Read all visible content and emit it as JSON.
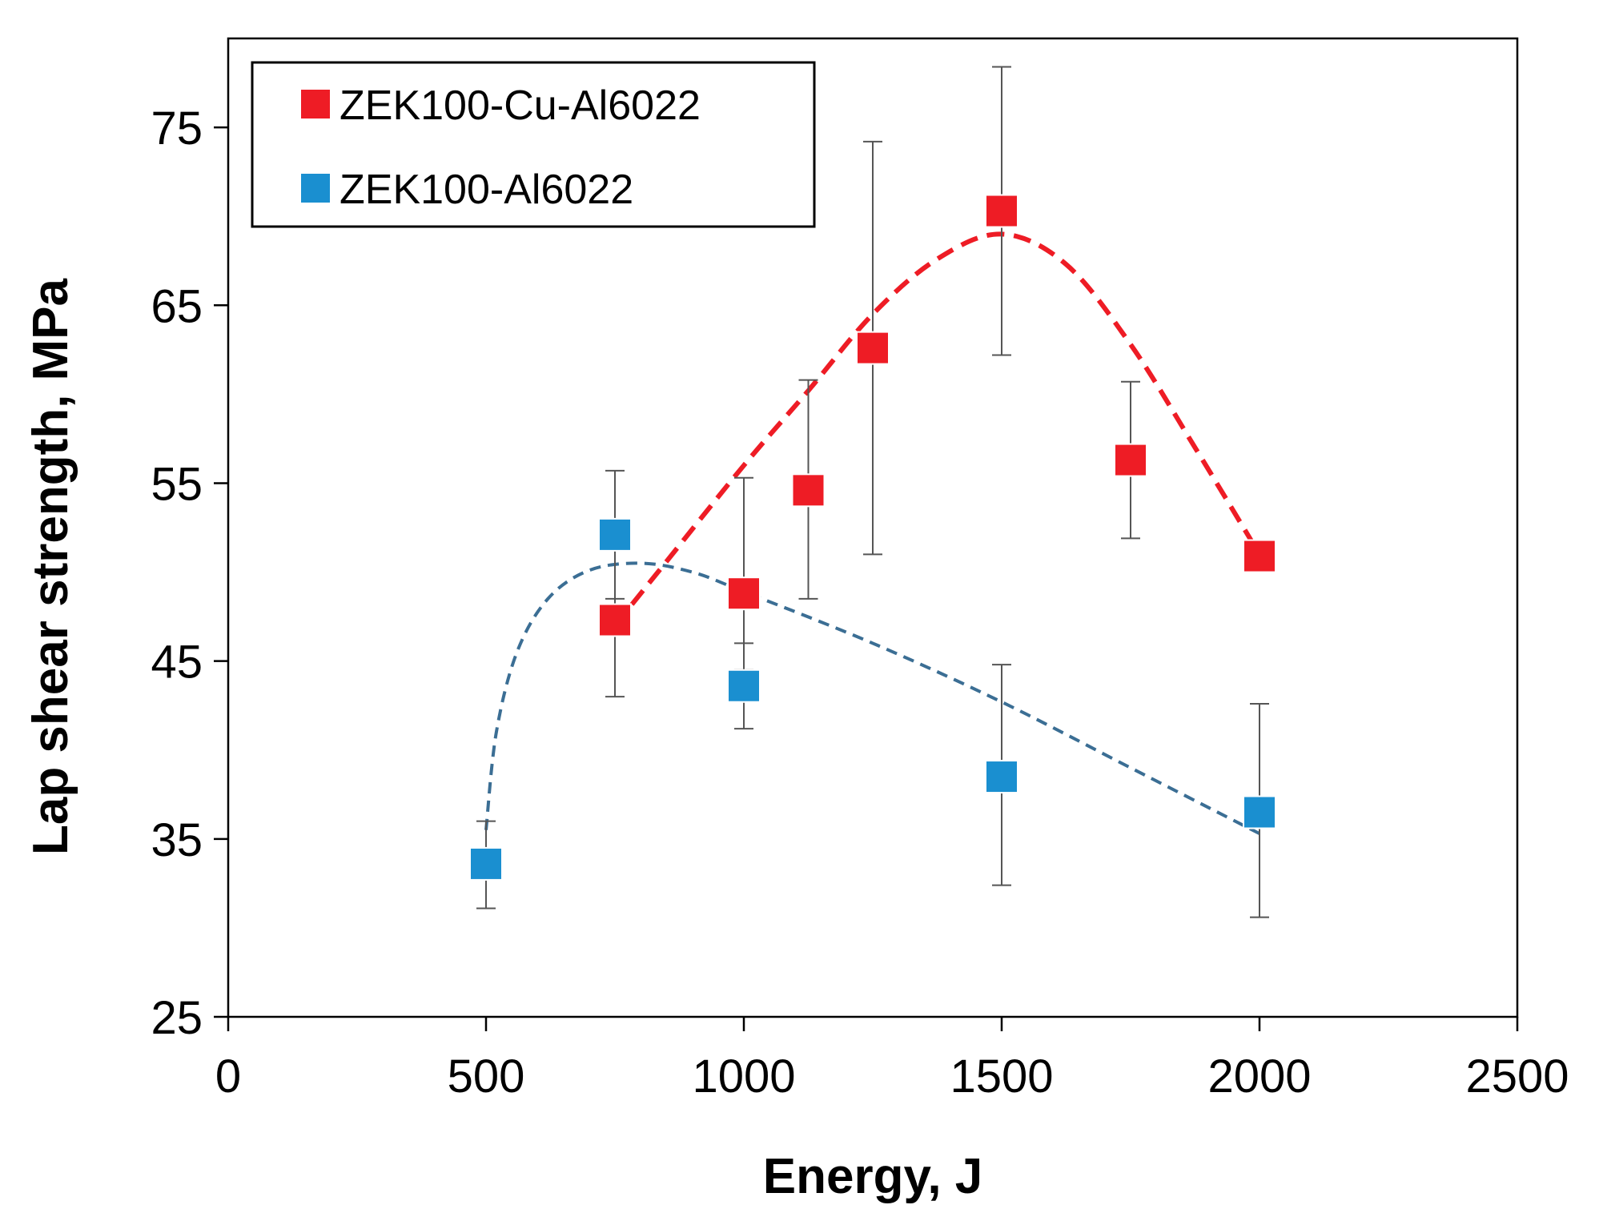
{
  "chart_data": {
    "type": "scatter",
    "title": "",
    "xlabel": "Energy, J",
    "ylabel": "Lap shear strength, MPa",
    "xlim": [
      0,
      2500
    ],
    "ylim": [
      25,
      80
    ],
    "xticks": [
      0,
      500,
      1000,
      1500,
      2000,
      2500
    ],
    "yticks": [
      25,
      35,
      45,
      55,
      65,
      75
    ],
    "grid": false,
    "legend_position": "top-left",
    "series": [
      {
        "name": "ZEK100-Cu-Al6022",
        "color": "#ee1c25",
        "marker": "square",
        "trendline": "dashed",
        "points": [
          {
            "x": 750,
            "y": 47.3,
            "err_low": 43.0,
            "err_high": 51.5
          },
          {
            "x": 1000,
            "y": 48.8,
            "err_low": 44.5,
            "err_high": 55.3
          },
          {
            "x": 1125,
            "y": 54.6,
            "err_low": 48.5,
            "err_high": 60.8
          },
          {
            "x": 1250,
            "y": 62.6,
            "err_low": 51.0,
            "err_high": 74.2
          },
          {
            "x": 1500,
            "y": 70.3,
            "err_low": 62.2,
            "err_high": 78.4
          },
          {
            "x": 1750,
            "y": 56.3,
            "err_low": 51.9,
            "err_high": 60.7
          },
          {
            "x": 2000,
            "y": 50.9,
            "err_low": 50.9,
            "err_high": 50.9
          }
        ],
        "fit": [
          [
            750,
            47.0
          ],
          [
            850,
            50.6
          ],
          [
            1000,
            56.0
          ],
          [
            1125,
            60.2
          ],
          [
            1250,
            64.5
          ],
          [
            1375,
            67.6
          ],
          [
            1500,
            69.0
          ],
          [
            1625,
            67.3
          ],
          [
            1750,
            62.8
          ],
          [
            1875,
            57.0
          ],
          [
            2000,
            51.0
          ]
        ]
      },
      {
        "name": "ZEK100-Al6022",
        "color": "#1a8fd0",
        "fit_color": "#3b6e94",
        "marker": "square",
        "trendline": "dashed",
        "points": [
          {
            "x": 500,
            "y": 33.6,
            "err_low": 31.1,
            "err_high": 36.0
          },
          {
            "x": 750,
            "y": 52.1,
            "err_low": 48.5,
            "err_high": 55.7
          },
          {
            "x": 1000,
            "y": 43.6,
            "err_low": 41.2,
            "err_high": 46.0
          },
          {
            "x": 1500,
            "y": 38.5,
            "err_low": 32.4,
            "err_high": 44.8
          },
          {
            "x": 2000,
            "y": 36.5,
            "err_low": 30.6,
            "err_high": 42.6
          }
        ],
        "fit": [
          [
            500,
            35.5
          ],
          [
            520,
            41.0
          ],
          [
            560,
            45.5
          ],
          [
            620,
            48.5
          ],
          [
            700,
            50.1
          ],
          [
            800,
            50.5
          ],
          [
            900,
            50.0
          ],
          [
            1000,
            48.9
          ],
          [
            1250,
            46.0
          ],
          [
            1500,
            42.7
          ],
          [
            1750,
            39.0
          ],
          [
            2000,
            35.3
          ]
        ]
      }
    ]
  }
}
